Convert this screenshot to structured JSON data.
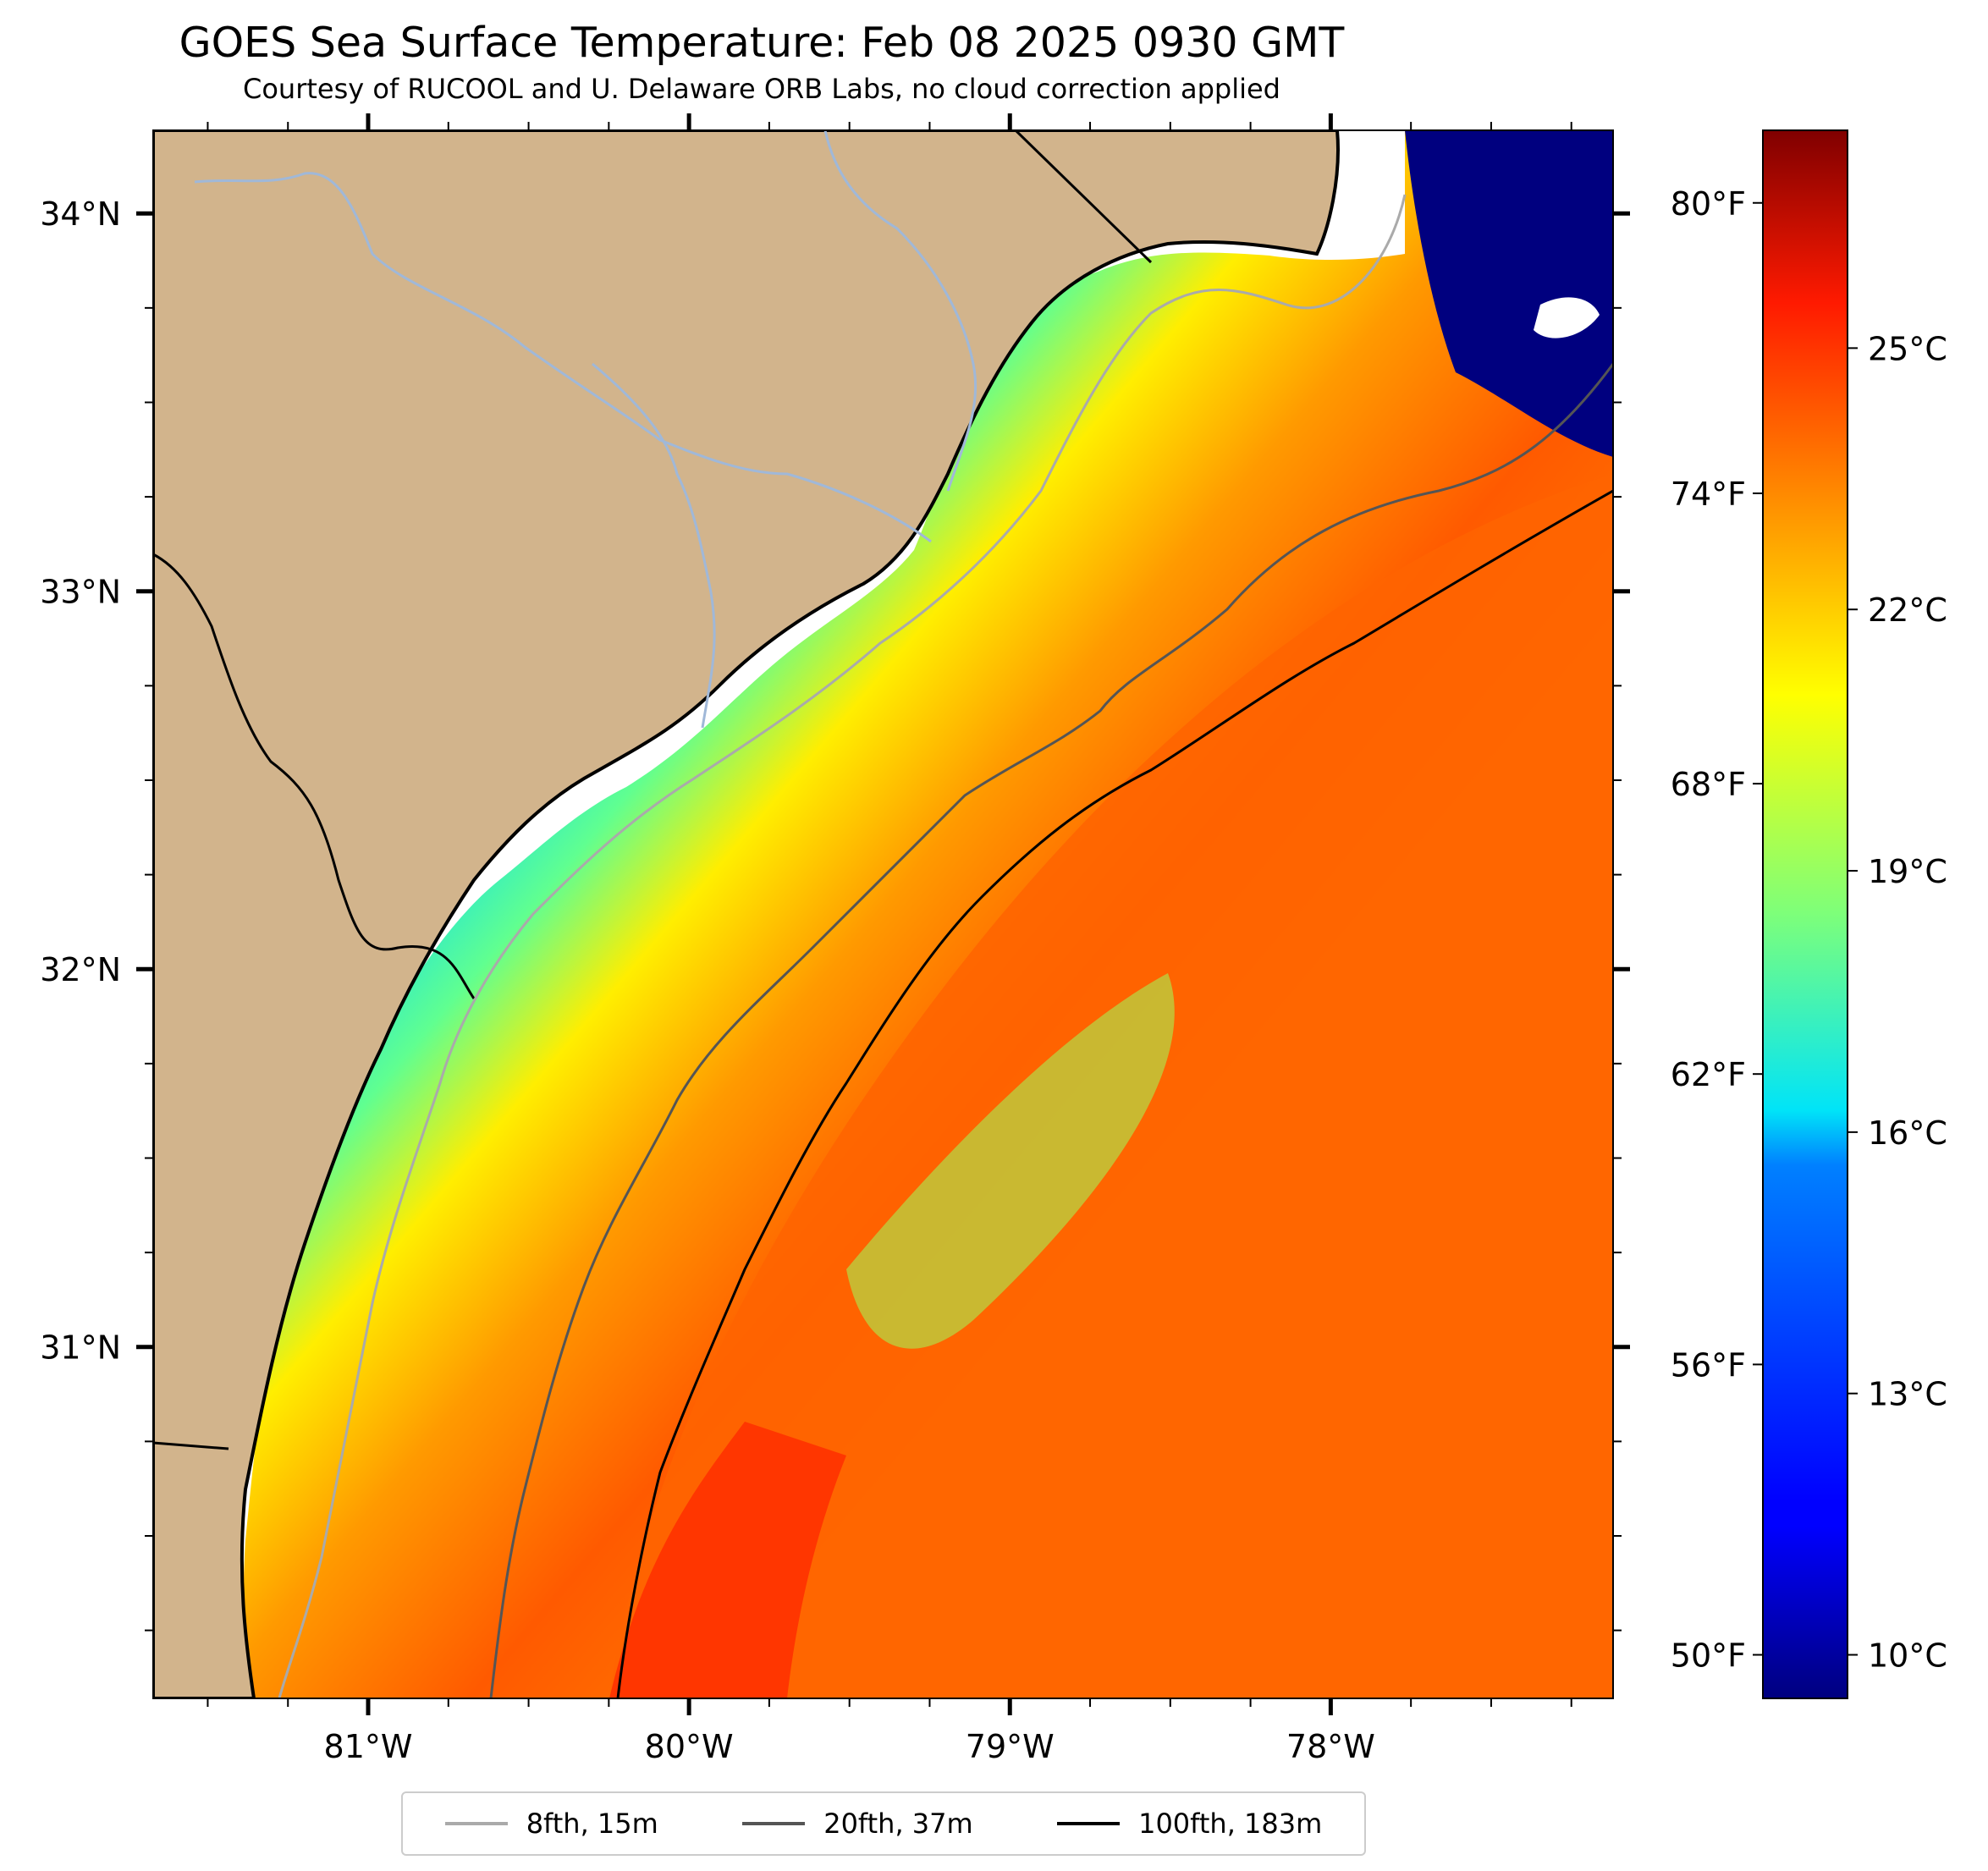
{
  "title": "GOES Sea Surface Temperature: Feb 08 2025 0930 GMT",
  "subtitle": "Courtesy of RUCOOL and U. Delaware ORB Labs, no cloud correction applied",
  "map": {
    "lon_range": [
      -81.67,
      -77.12
    ],
    "lat_range": [
      30.07,
      34.22
    ],
    "lat_ticks": [
      {
        "value": 34,
        "label": "34°N"
      },
      {
        "value": 33,
        "label": "33°N"
      },
      {
        "value": 32,
        "label": "32°N"
      },
      {
        "value": 31,
        "label": "31°N"
      }
    ],
    "lon_ticks": [
      {
        "value": -81,
        "label": "81°W"
      },
      {
        "value": -80,
        "label": "80°W"
      },
      {
        "value": -79,
        "label": "79°W"
      },
      {
        "value": -78,
        "label": "78°W"
      }
    ],
    "colors": {
      "land": "#d2b48c",
      "coast": "#000000",
      "rivers": "#a0b8d8",
      "white_gap": "#ffffff"
    }
  },
  "colorbar": {
    "colormap": "jet",
    "celsius_range": [
      9.5,
      27.5
    ],
    "left_labels": [
      {
        "value_c": 26.667,
        "label": "80°F"
      },
      {
        "value_c": 23.333,
        "label": "74°F"
      },
      {
        "value_c": 20.0,
        "label": "68°F"
      },
      {
        "value_c": 16.667,
        "label": "62°F"
      },
      {
        "value_c": 13.333,
        "label": "56°F"
      },
      {
        "value_c": 10.0,
        "label": "50°F"
      }
    ],
    "right_labels": [
      {
        "value_c": 25,
        "label": "25°C"
      },
      {
        "value_c": 22,
        "label": "22°C"
      },
      {
        "value_c": 19,
        "label": "19°C"
      },
      {
        "value_c": 16,
        "label": "16°C"
      },
      {
        "value_c": 13,
        "label": "13°C"
      },
      {
        "value_c": 10,
        "label": "10°C"
      }
    ]
  },
  "legend": [
    {
      "label": "8fth, 15m",
      "color": "#aaaaaa"
    },
    {
      "label": "20fth, 37m",
      "color": "#555555"
    },
    {
      "label": "100fth, 183m",
      "color": "#000000"
    }
  ]
}
